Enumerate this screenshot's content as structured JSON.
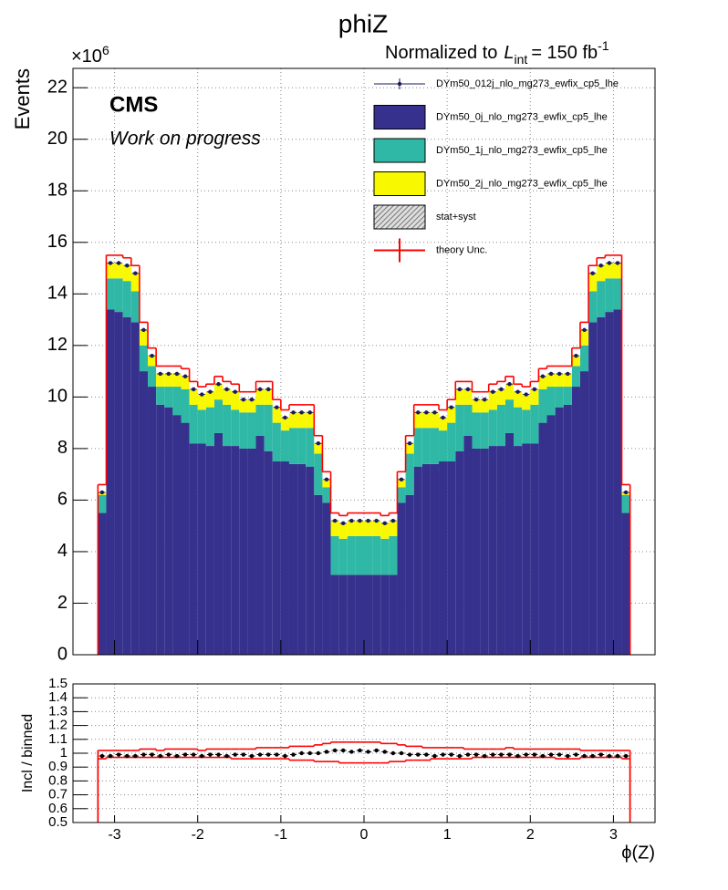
{
  "chart_data": [
    {
      "type": "histogram",
      "title": "phiZ",
      "annotation": {
        "prefix": "Normalized to",
        "symbol": "L",
        "sub": "int",
        "text": "= 150 fb",
        "sup": "-1"
      },
      "cms_label": "CMS",
      "status_label": "Work on progress",
      "multiplier": {
        "base": "×10",
        "exponent": "6"
      },
      "ylabel": "Events",
      "xlim": [
        -3.5,
        3.5
      ],
      "ylim": [
        0,
        22.75
      ],
      "xticks": [
        -3,
        -2,
        -1,
        0,
        1,
        2,
        3
      ],
      "yticks": [
        0,
        2,
        4,
        6,
        8,
        10,
        12,
        14,
        16,
        18,
        20,
        22
      ],
      "grid": true,
      "legend": "top-right",
      "bins": [
        -3.2,
        -3.1,
        -3.0,
        -2.9,
        -2.8,
        -2.7,
        -2.6,
        -2.5,
        -2.4,
        -2.3,
        -2.2,
        -2.1,
        -2.0,
        -1.9,
        -1.8,
        -1.7,
        -1.6,
        -1.5,
        -1.4,
        -1.3,
        -1.2,
        -1.1,
        -1.0,
        -0.9,
        -0.8,
        -0.7,
        -0.6,
        -0.5,
        -0.4,
        -0.3,
        -0.2,
        -0.1,
        0,
        0.1,
        0.2,
        0.3,
        0.4,
        0.5,
        0.6,
        0.7,
        0.8,
        0.9,
        1.0,
        1.1,
        1.2,
        1.3,
        1.4,
        1.5,
        1.6,
        1.7,
        1.8,
        1.9,
        2.0,
        2.1,
        2.2,
        2.3,
        2.4,
        2.5,
        2.6,
        2.7,
        2.8,
        2.9,
        3.0,
        3.1,
        3.2
      ],
      "series": [
        {
          "name": "DYm50_012j_nlo_mg273_ewfix_cp5_lhe",
          "style": "points",
          "color": "#1b1a5c",
          "values": [
            6.3,
            15.2,
            15.2,
            15.1,
            14.8,
            12.6,
            11.6,
            10.9,
            10.9,
            10.9,
            10.8,
            10.3,
            10.1,
            10.2,
            10.5,
            10.3,
            10.2,
            9.9,
            9.9,
            10.3,
            10.3,
            9.6,
            9.2,
            9.4,
            9.4,
            9.4,
            8.2,
            6.8,
            5.2,
            5.1,
            5.2,
            5.2,
            5.2,
            5.2,
            5.1,
            5.2,
            6.8,
            8.2,
            9.4,
            9.4,
            9.4,
            9.2,
            9.6,
            10.3,
            10.3,
            9.9,
            9.9,
            10.2,
            10.3,
            10.5,
            10.2,
            10.1,
            10.3,
            10.8,
            10.9,
            10.9,
            10.9,
            11.6,
            12.6,
            14.8,
            15.1,
            15.2,
            15.2,
            6.3
          ]
        },
        {
          "name": "DYm50_0j_nlo_mg273_ewfix_cp5_lhe",
          "style": "stack",
          "color": "#35318d",
          "values": [
            5.5,
            13.4,
            13.3,
            13.1,
            12.9,
            11.0,
            10.4,
            9.7,
            9.6,
            9.3,
            9.0,
            8.2,
            8.2,
            8.1,
            8.6,
            8.1,
            8.1,
            8.0,
            8.0,
            8.5,
            7.9,
            7.5,
            7.5,
            7.4,
            7.4,
            7.3,
            6.2,
            5.9,
            3.1,
            3.1,
            3.1,
            3.1,
            3.1,
            3.1,
            3.1,
            3.1,
            5.9,
            6.2,
            7.3,
            7.4,
            7.4,
            7.5,
            7.5,
            7.9,
            8.5,
            8.0,
            8.0,
            8.1,
            8.1,
            8.6,
            8.1,
            8.2,
            8.2,
            9.0,
            9.3,
            9.6,
            9.7,
            10.4,
            11.0,
            12.9,
            13.1,
            13.3,
            13.4,
            5.5
          ]
        },
        {
          "name": "DYm50_1j_nlo_mg273_ewfix_cp5_lhe",
          "style": "stack",
          "color": "#2fb8a5",
          "values": [
            0.7,
            1.2,
            1.3,
            1.4,
            1.2,
            1.0,
            0.8,
            0.7,
            0.8,
            1.1,
            1.3,
            1.5,
            1.3,
            1.5,
            1.3,
            1.6,
            1.4,
            1.4,
            1.4,
            1.2,
            1.8,
            1.5,
            1.2,
            1.4,
            1.4,
            1.5,
            1.6,
            0.6,
            1.5,
            1.4,
            1.5,
            1.5,
            1.5,
            1.5,
            1.4,
            1.5,
            0.6,
            1.6,
            1.5,
            1.4,
            1.4,
            1.2,
            1.5,
            1.8,
            1.2,
            1.4,
            1.4,
            1.4,
            1.6,
            1.3,
            1.5,
            1.3,
            1.5,
            1.3,
            1.1,
            0.8,
            0.7,
            0.8,
            1.0,
            1.2,
            1.4,
            1.3,
            1.2,
            0.7
          ]
        },
        {
          "name": "DYm50_2j_nlo_mg273_ewfix_cp5_lhe",
          "style": "stack",
          "color": "#f8f800",
          "values": [
            0.1,
            0.6,
            0.6,
            0.6,
            0.7,
            0.6,
            0.4,
            0.5,
            0.5,
            0.5,
            0.5,
            0.6,
            0.6,
            0.6,
            0.6,
            0.6,
            0.7,
            0.5,
            0.5,
            0.6,
            0.6,
            0.6,
            0.5,
            0.6,
            0.6,
            0.6,
            0.4,
            0.3,
            0.6,
            0.6,
            0.6,
            0.6,
            0.6,
            0.6,
            0.6,
            0.6,
            0.3,
            0.4,
            0.6,
            0.6,
            0.6,
            0.5,
            0.6,
            0.6,
            0.6,
            0.5,
            0.5,
            0.7,
            0.6,
            0.6,
            0.6,
            0.6,
            0.6,
            0.5,
            0.5,
            0.5,
            0.5,
            0.4,
            0.6,
            0.7,
            0.6,
            0.6,
            0.6,
            0.1
          ]
        },
        {
          "name": "stat+syst",
          "style": "hatch",
          "color": "#777777"
        },
        {
          "name": "theory Unc.",
          "style": "step",
          "color": "#ff0000",
          "values": [
            6.6,
            15.5,
            15.5,
            15.4,
            15.1,
            12.9,
            11.9,
            11.2,
            11.2,
            11.2,
            11.1,
            10.6,
            10.4,
            10.5,
            10.8,
            10.6,
            10.5,
            10.2,
            10.2,
            10.6,
            10.6,
            9.9,
            9.5,
            9.7,
            9.7,
            9.7,
            8.5,
            7.1,
            5.5,
            5.4,
            5.5,
            5.5,
            5.5,
            5.5,
            5.4,
            5.5,
            7.1,
            8.5,
            9.7,
            9.7,
            9.7,
            9.5,
            9.9,
            10.6,
            10.6,
            10.2,
            10.2,
            10.5,
            10.6,
            10.8,
            10.5,
            10.4,
            10.6,
            11.1,
            11.2,
            11.2,
            11.2,
            11.9,
            12.9,
            15.1,
            15.4,
            15.5,
            15.5,
            6.6
          ]
        }
      ]
    },
    {
      "type": "histogram",
      "ylabel": "Incl / binned",
      "xlabel": "ϕ(Z)",
      "xlim": [
        -3.5,
        3.5
      ],
      "ylim": [
        0.5,
        1.5
      ],
      "xticks": [
        -3,
        -2,
        -1,
        0,
        1,
        2,
        3
      ],
      "yticks": [
        0.5,
        0.6,
        0.7,
        0.8,
        0.9,
        1,
        1.1,
        1.2,
        1.3,
        1.4,
        1.5
      ],
      "grid": true,
      "bins": [
        -3.2,
        -3.1,
        -3.0,
        -2.9,
        -2.8,
        -2.7,
        -2.6,
        -2.5,
        -2.4,
        -2.3,
        -2.2,
        -2.1,
        -2.0,
        -1.9,
        -1.8,
        -1.7,
        -1.6,
        -1.5,
        -1.4,
        -1.3,
        -1.2,
        -1.1,
        -1.0,
        -0.9,
        -0.8,
        -0.7,
        -0.6,
        -0.5,
        -0.4,
        -0.3,
        -0.2,
        -0.1,
        0,
        0.1,
        0.2,
        0.3,
        0.4,
        0.5,
        0.6,
        0.7,
        0.8,
        0.9,
        1.0,
        1.1,
        1.2,
        1.3,
        1.4,
        1.5,
        1.6,
        1.7,
        1.8,
        1.9,
        2.0,
        2.1,
        2.2,
        2.3,
        2.4,
        2.5,
        2.6,
        2.7,
        2.8,
        2.9,
        3.0,
        3.1,
        3.2
      ],
      "series": [
        {
          "style": "points",
          "color": "#000000",
          "values": [
            0.98,
            0.98,
            0.99,
            0.98,
            0.98,
            0.99,
            0.99,
            0.98,
            0.99,
            0.98,
            0.99,
            0.99,
            0.98,
            0.99,
            0.99,
            0.98,
            0.99,
            0.99,
            0.98,
            0.99,
            0.99,
            0.99,
            0.98,
            0.99,
            1.0,
            1.0,
            1.0,
            1.01,
            1.02,
            1.02,
            1.01,
            1.02,
            1.01,
            1.02,
            1.01,
            1.0,
            1.0,
            0.99,
            0.99,
            0.99,
            0.98,
            0.99,
            0.99,
            0.98,
            0.99,
            0.99,
            0.98,
            0.99,
            0.99,
            0.99,
            0.98,
            0.99,
            0.99,
            0.98,
            0.99,
            0.99,
            0.98,
            0.99,
            0.98,
            0.98,
            0.99,
            0.98,
            0.98,
            0.98
          ]
        },
        {
          "style": "step",
          "color": "#ff0000",
          "values": [
            1.02,
            1.02,
            1.02,
            1.02,
            1.02,
            1.03,
            1.03,
            1.02,
            1.03,
            1.03,
            1.03,
            1.03,
            1.02,
            1.03,
            1.03,
            1.03,
            1.03,
            1.03,
            1.03,
            1.04,
            1.04,
            1.04,
            1.04,
            1.05,
            1.05,
            1.05,
            1.06,
            1.07,
            1.08,
            1.08,
            1.08,
            1.08,
            1.08,
            1.08,
            1.07,
            1.07,
            1.06,
            1.05,
            1.05,
            1.04,
            1.04,
            1.04,
            1.04,
            1.04,
            1.03,
            1.03,
            1.03,
            1.03,
            1.03,
            1.04,
            1.03,
            1.03,
            1.03,
            1.03,
            1.03,
            1.03,
            1.03,
            1.03,
            1.02,
            1.02,
            1.02,
            1.02,
            1.02,
            1.02
          ]
        },
        {
          "style": "step",
          "color": "#ff0000",
          "values": [
            0.96,
            0.97,
            0.97,
            0.97,
            0.97,
            0.97,
            0.97,
            0.97,
            0.97,
            0.97,
            0.97,
            0.97,
            0.97,
            0.97,
            0.97,
            0.97,
            0.96,
            0.96,
            0.96,
            0.96,
            0.96,
            0.96,
            0.96,
            0.95,
            0.95,
            0.95,
            0.94,
            0.94,
            0.94,
            0.93,
            0.93,
            0.93,
            0.93,
            0.93,
            0.93,
            0.94,
            0.94,
            0.95,
            0.95,
            0.95,
            0.96,
            0.96,
            0.96,
            0.96,
            0.96,
            0.97,
            0.97,
            0.97,
            0.97,
            0.97,
            0.97,
            0.97,
            0.97,
            0.97,
            0.97,
            0.96,
            0.96,
            0.96,
            0.97,
            0.97,
            0.97,
            0.97,
            0.97,
            0.96
          ]
        }
      ]
    }
  ]
}
